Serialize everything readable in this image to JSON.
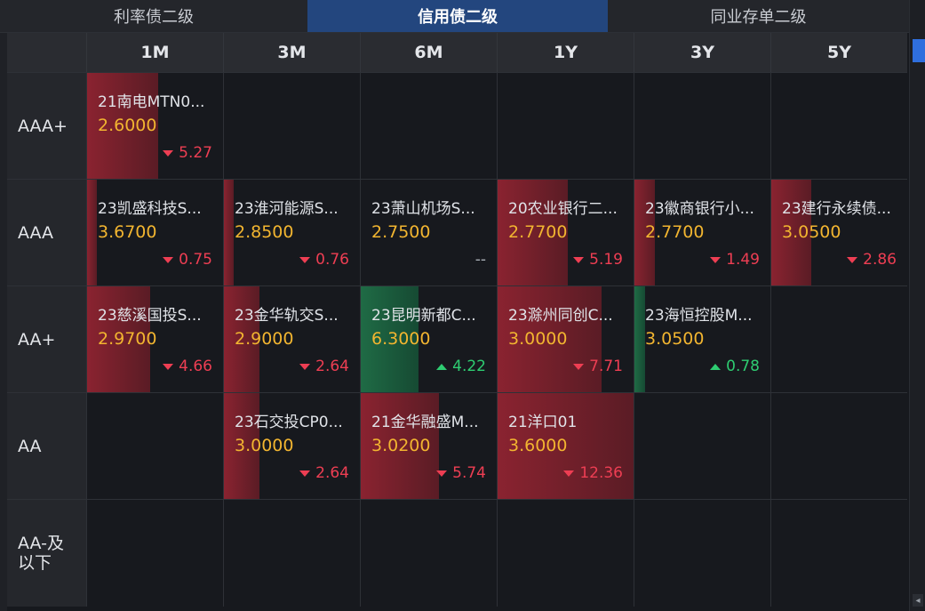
{
  "tabs": [
    {
      "label": "利率债二级",
      "active": false
    },
    {
      "label": "信用债二级",
      "active": true
    },
    {
      "label": "同业存单二级",
      "active": false
    }
  ],
  "tenors": [
    "1M",
    "3M",
    "6M",
    "1Y",
    "3Y",
    "5Y"
  ],
  "ratings": [
    "AAA+",
    "AAA",
    "AA+",
    "AA",
    "AA-及以下"
  ],
  "rows": [
    {
      "rating": "AAA+",
      "cells": [
        {
          "name": "21南电MTN0...",
          "rate": "2.6000",
          "change": "5.27",
          "dir": "down",
          "fill": 0.52
        },
        null,
        null,
        null,
        null,
        null
      ]
    },
    {
      "rating": "AAA",
      "cells": [
        {
          "name": "23凯盛科技S...",
          "rate": "3.6700",
          "change": "0.75",
          "dir": "down",
          "fill": 0.07
        },
        {
          "name": "23淮河能源S...",
          "rate": "2.8500",
          "change": "0.76",
          "dir": "down",
          "fill": 0.07
        },
        {
          "name": "23萧山机场S...",
          "rate": "2.7500",
          "change": "--",
          "dir": "none",
          "fill": 0
        },
        {
          "name": "20农业银行二...",
          "rate": "2.7700",
          "change": "5.19",
          "dir": "down",
          "fill": 0.51
        },
        {
          "name": "23徽商银行小...",
          "rate": "2.7700",
          "change": "1.49",
          "dir": "down",
          "fill": 0.15
        },
        {
          "name": "23建行永续债...",
          "rate": "3.0500",
          "change": "2.86",
          "dir": "down",
          "fill": 0.29
        }
      ]
    },
    {
      "rating": "AA+",
      "cells": [
        {
          "name": "23慈溪国投S...",
          "rate": "2.9700",
          "change": "4.66",
          "dir": "down",
          "fill": 0.46
        },
        {
          "name": "23金华轨交S...",
          "rate": "2.9000",
          "change": "2.64",
          "dir": "down",
          "fill": 0.26
        },
        {
          "name": "23昆明新都C...",
          "rate": "6.3000",
          "change": "4.22",
          "dir": "up",
          "fill": 0.42
        },
        {
          "name": "23滁州同创C...",
          "rate": "3.0000",
          "change": "7.71",
          "dir": "down",
          "fill": 0.76
        },
        {
          "name": "23海恒控股M...",
          "rate": "3.0500",
          "change": "0.78",
          "dir": "up",
          "fill": 0.08
        },
        null
      ]
    },
    {
      "rating": "AA",
      "cells": [
        null,
        {
          "name": "23石交投CP0...",
          "rate": "3.0000",
          "change": "2.64",
          "dir": "down",
          "fill": 0.26
        },
        {
          "name": "21金华融盛M...",
          "rate": "3.0200",
          "change": "5.74",
          "dir": "down",
          "fill": 0.57
        },
        {
          "name": "21洋口01",
          "rate": "3.6000",
          "change": "12.36",
          "dir": "down",
          "fill": 1.0
        },
        null,
        null
      ]
    },
    {
      "rating": "AA-及以下",
      "cells": [
        null,
        null,
        null,
        null,
        null,
        null
      ]
    }
  ]
}
